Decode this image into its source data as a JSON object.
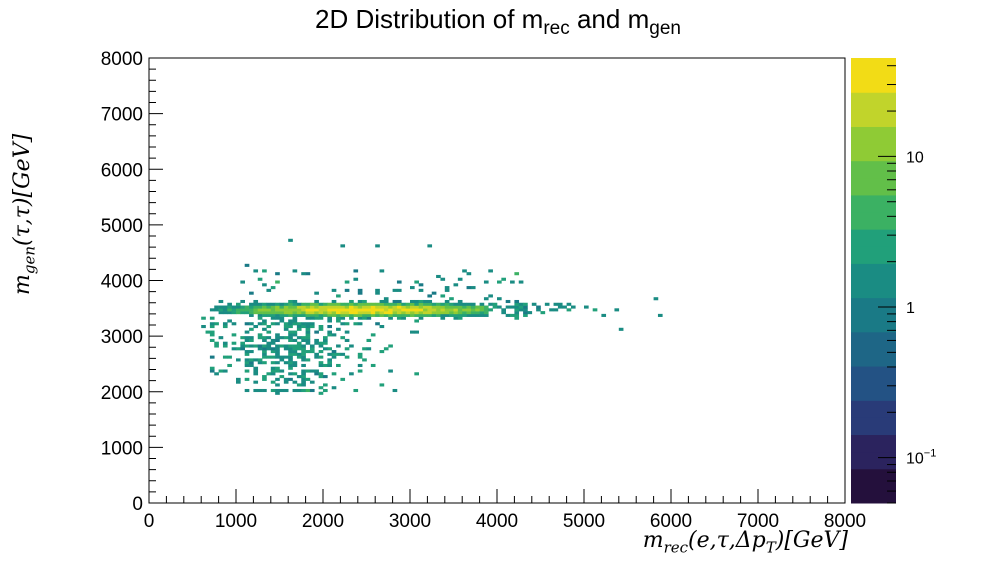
{
  "chart_data": {
    "type": "heatmap",
    "title": {
      "text": "2D Distribution of m",
      "sub1": "rec",
      "mid": " and m",
      "sub2": "gen"
    },
    "xlabel": {
      "m": "m",
      "sub": "rec",
      "args": "(e,τ,Δp",
      "argsub": "T",
      "end": ")[GeV]"
    },
    "ylabel": {
      "m": "m",
      "sub": "gen",
      "args": "(τ,τ)[GeV]"
    },
    "xlim": [
      0,
      8000
    ],
    "ylim": [
      0,
      8000
    ],
    "x_ticks": [
      "0",
      "1000",
      "2000",
      "3000",
      "4000",
      "5000",
      "6000",
      "7000",
      "8000"
    ],
    "y_ticks": [
      "0",
      "1000",
      "2000",
      "3000",
      "4000",
      "5000",
      "6000",
      "7000",
      "8000"
    ],
    "z_scale": "log",
    "zlim": [
      0.05,
      45
    ],
    "z_ticks": [
      {
        "value": 10,
        "label": "10"
      },
      {
        "value": 1,
        "label": "1"
      },
      {
        "value": 0.1,
        "base": "10",
        "exp": "−1"
      }
    ],
    "colormap": [
      "#24103c",
      "#2b235e",
      "#293b78",
      "#235284",
      "#1e6686",
      "#1a7a86",
      "#1a8c83",
      "#21a07a",
      "#3bb163",
      "#62bf49",
      "#8fcb35",
      "#c1d42b",
      "#f2dc16"
    ],
    "bin_width": 50,
    "core_band": {
      "y_center": 3480,
      "x_center": 2500,
      "x_range": [
        700,
        3900
      ],
      "peak_count": 38
    },
    "lower_cloud": {
      "x_range": [
        600,
        3200
      ],
      "y_range": [
        1950,
        3350
      ],
      "typical_count": 1.5
    },
    "sparse_tail": {
      "x_range": [
        3900,
        5850
      ],
      "y_range": [
        3200,
        3700
      ]
    },
    "outliers": [
      [
        1600,
        4700
      ],
      [
        2200,
        4600
      ],
      [
        2600,
        4600
      ],
      [
        3200,
        4600
      ],
      [
        1100,
        4250
      ],
      [
        3900,
        4150
      ],
      [
        4200,
        4100
      ],
      [
        5800,
        3650
      ],
      [
        5850,
        3350
      ],
      [
        5400,
        3100
      ]
    ]
  }
}
